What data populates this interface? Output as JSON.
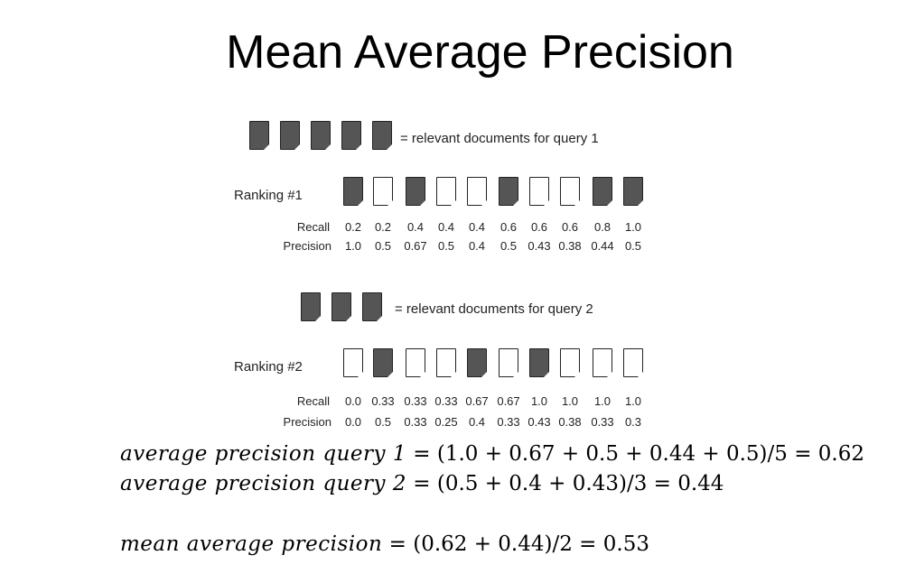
{
  "title": "Mean Average Precision",
  "query1": {
    "legend_count": 5,
    "legend_text": "= relevant documents for query 1",
    "ranking_label": "Ranking #1",
    "relevance": [
      1,
      0,
      1,
      0,
      0,
      1,
      0,
      0,
      1,
      1
    ],
    "recall_label": "Recall",
    "precision_label": "Precision",
    "recall": [
      "0.2",
      "0.2",
      "0.4",
      "0.4",
      "0.4",
      "0.6",
      "0.6",
      "0.6",
      "0.8",
      "1.0"
    ],
    "precision": [
      "1.0",
      "0.5",
      "0.67",
      "0.5",
      "0.4",
      "0.5",
      "0.43",
      "0.38",
      "0.44",
      "0.5"
    ]
  },
  "query2": {
    "legend_count": 3,
    "legend_text": "= relevant documents for query 2",
    "ranking_label": "Ranking #2",
    "relevance": [
      0,
      1,
      0,
      0,
      1,
      0,
      1,
      0,
      0,
      0
    ],
    "recall_label": "Recall",
    "precision_label": "Precision",
    "recall": [
      "0.0",
      "0.33",
      "0.33",
      "0.33",
      "0.67",
      "0.67",
      "1.0",
      "1.0",
      "1.0",
      "1.0"
    ],
    "precision": [
      "0.0",
      "0.5",
      "0.33",
      "0.25",
      "0.4",
      "0.33",
      "0.43",
      "0.38",
      "0.33",
      "0.3"
    ]
  },
  "formulas": {
    "ap1_lhs": "average precision query 1",
    "ap1_rhs": "= (1.0 + 0.67 + 0.5 + 0.44 + 0.5)/5 = 0.62",
    "ap2_lhs": "average precision query 2",
    "ap2_rhs": "= (0.5 + 0.4 + 0.43)/3 = 0.44",
    "map_lhs": "mean average precision",
    "map_rhs": "= (0.62 + 0.44)/2 = 0.53"
  },
  "colors": {
    "relevant_doc": "#555555",
    "nonrelevant_doc": "#ffffff"
  }
}
